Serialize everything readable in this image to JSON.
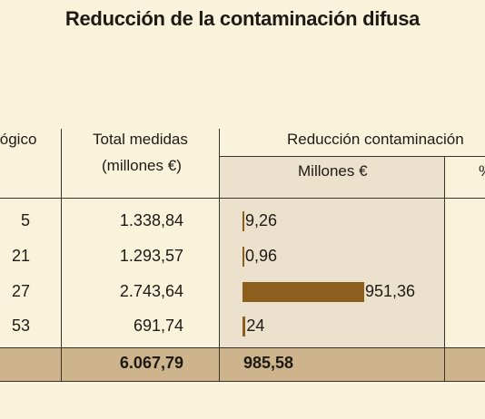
{
  "title": "Reducción de la contaminación difusa",
  "headers": {
    "col1": "lógico",
    "total_line1": "Total medidas",
    "total_line2": "(millones €)",
    "reduccion": "Reducción contaminación",
    "millones": "Millones €",
    "pct": "%"
  },
  "rows": [
    {
      "cut": "5",
      "total": "1.338,84",
      "red": "9,26"
    },
    {
      "cut": "21",
      "total": "1.293,57",
      "red": "0,96"
    },
    {
      "cut": "27",
      "total": "2.743,64",
      "red": "951,36"
    },
    {
      "cut": "53",
      "total": "691,74",
      "red": "24"
    }
  ],
  "totals": {
    "total": "6.067,79",
    "red": "985,58"
  },
  "colors": {
    "background": "#faf3dc",
    "panel": "#ece1cc",
    "total_row": "#cdb48d",
    "bar": "#8d5f1c"
  },
  "chart_data": {
    "type": "bar",
    "orientation": "horizontal",
    "categories": [
      "5",
      "21",
      "27",
      "53"
    ],
    "series": [
      {
        "values": [
          9.26,
          0.96,
          951.36,
          24
        ]
      }
    ],
    "totals": {
      "total_medidas": 6067.79,
      "reduccion_millones": 985.58
    },
    "xlim": [
      0,
      951.36
    ]
  }
}
